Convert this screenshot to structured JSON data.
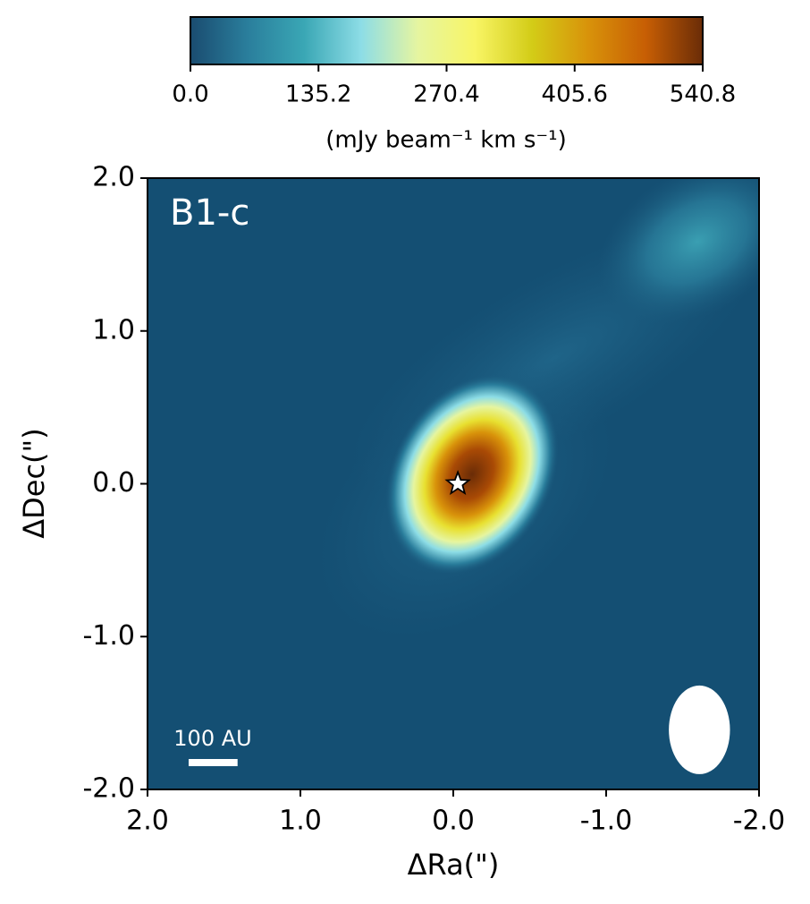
{
  "chart_data": {
    "type": "image",
    "annotation": "B1-c",
    "xlabel": "ΔRa(\")",
    "ylabel": "ΔDec(\")",
    "xlim": [
      2.0,
      -2.0
    ],
    "ylim": [
      -2.0,
      2.0
    ],
    "xticks": [
      {
        "value": 2,
        "label": "2.0"
      },
      {
        "value": 1,
        "label": "1.0"
      },
      {
        "value": 0,
        "label": "0.0"
      },
      {
        "value": -1,
        "label": "-1.0"
      },
      {
        "value": -2,
        "label": "-2.0"
      }
    ],
    "yticks": [
      {
        "value": -2,
        "label": "-2.0"
      },
      {
        "value": -1,
        "label": "-1.0"
      },
      {
        "value": 0,
        "label": "0.0"
      },
      {
        "value": 1,
        "label": "1.0"
      },
      {
        "value": 2,
        "label": "2.0"
      }
    ],
    "colorbar": {
      "label": "(mJy beam⁻¹ km s⁻¹)",
      "lim": [
        0,
        540.8
      ],
      "ticks": [
        {
          "value": 0,
          "label": "0.0"
        },
        135.2,
        270.4,
        405.6,
        540.8
      ],
      "colors": [
        "#1a4c70",
        "#2a7e9c",
        "#3aa7b5",
        "#8ddde6",
        "#e6f5a0",
        "#f8f565",
        "#d3cc17",
        "#d8920a",
        "#c75e04",
        "#6a2c07"
      ]
    },
    "source": {
      "x": -0.03,
      "y": 0.0
    },
    "beam": {
      "x": -1.61,
      "y": -1.61,
      "major": 0.58,
      "minor": 0.4
    },
    "scalebar": {
      "label": "100 AU",
      "length": 0.32
    }
  }
}
